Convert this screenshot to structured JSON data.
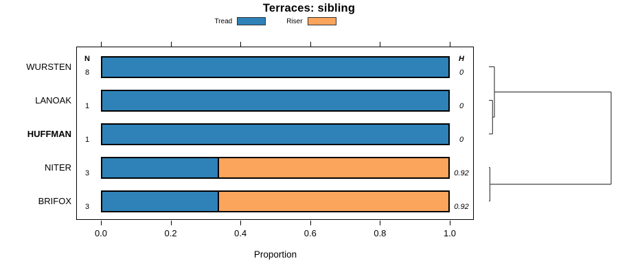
{
  "chart_data": {
    "type": "bar",
    "orientation": "horizontal",
    "stacked": true,
    "title": "Terraces: sibling",
    "xlabel": "Proportion",
    "xlim": [
      0,
      1
    ],
    "x_ticks": [
      0,
      0.2,
      0.4,
      0.6,
      0.8,
      1.0
    ],
    "x_tick_labels": [
      "0.0",
      "0.2",
      "0.4",
      "0.6",
      "0.8",
      "1.0"
    ],
    "grid": false,
    "legend_position": "top",
    "categories": [
      "WURSTEN",
      "LANOAK",
      "HUFFMAN",
      "NITER",
      "BRIFOX"
    ],
    "emphasized_category": "HUFFMAN",
    "series": [
      {
        "name": "Tread",
        "color": "#2E82B8",
        "values": [
          1.0,
          1.0,
          1.0,
          0.333,
          0.333
        ]
      },
      {
        "name": "Riser",
        "color": "#FBA45C",
        "values": [
          0.0,
          0.0,
          0.0,
          0.667,
          0.667
        ]
      }
    ],
    "n_column": {
      "header": "N",
      "values": [
        "8",
        "1",
        "1",
        "3",
        "3"
      ]
    },
    "h_column": {
      "header": "H",
      "values": [
        "0",
        "0",
        "0",
        "0.92",
        "0.92"
      ]
    },
    "dendrogram": {
      "side": "right",
      "root": {
        "height": 1.0,
        "children": [
          {
            "height": 0.045,
            "children": [
              {
                "leaf": "WURSTEN"
              },
              {
                "height": 0.03,
                "children": [
                  {
                    "leaf": "LANOAK"
                  },
                  {
                    "leaf": "HUFFMAN"
                  }
                ]
              }
            ]
          },
          {
            "height": 0.008,
            "children": [
              {
                "leaf": "NITER"
              },
              {
                "leaf": "BRIFOX"
              }
            ]
          }
        ]
      }
    }
  }
}
